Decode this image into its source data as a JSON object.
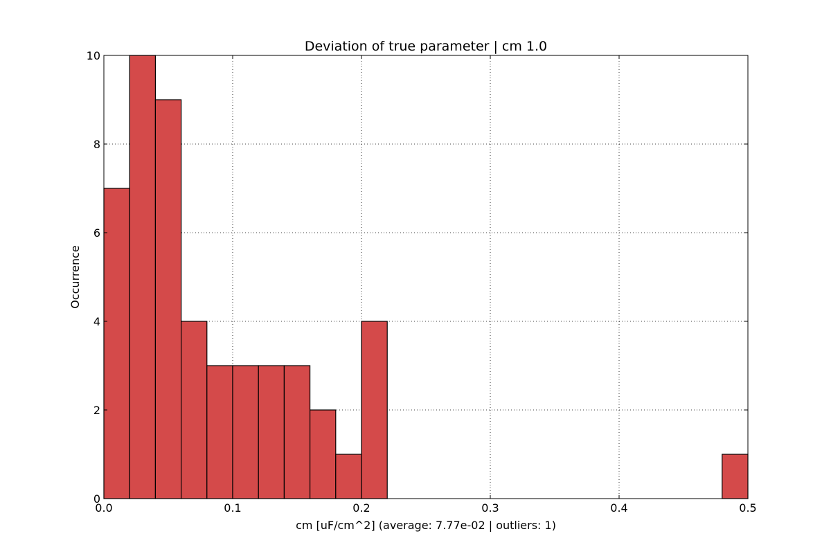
{
  "chart_data": {
    "type": "bar",
    "title": "Deviation of true parameter | cm 1.0",
    "xlabel": "cm [uF/cm^2] (average: 7.77e-02 | outliers: 1)",
    "ylabel": "Occurrence",
    "xlim": [
      0.0,
      0.5
    ],
    "ylim": [
      0,
      10
    ],
    "grid": true,
    "bar_color": "#d44a4a",
    "edge_color": "#000000",
    "bins": [
      {
        "start": 0.0,
        "end": 0.02,
        "value": 7
      },
      {
        "start": 0.02,
        "end": 0.04,
        "value": 10
      },
      {
        "start": 0.04,
        "end": 0.06,
        "value": 9
      },
      {
        "start": 0.06,
        "end": 0.08,
        "value": 4
      },
      {
        "start": 0.08,
        "end": 0.1,
        "value": 3
      },
      {
        "start": 0.1,
        "end": 0.12,
        "value": 3
      },
      {
        "start": 0.12,
        "end": 0.14,
        "value": 3
      },
      {
        "start": 0.14,
        "end": 0.16,
        "value": 3
      },
      {
        "start": 0.16,
        "end": 0.18,
        "value": 2
      },
      {
        "start": 0.18,
        "end": 0.2,
        "value": 1
      },
      {
        "start": 0.2,
        "end": 0.22,
        "value": 4
      },
      {
        "start": 0.48,
        "end": 0.5,
        "value": 1
      }
    ],
    "xticks": [
      {
        "value": 0.0,
        "label": "0.0"
      },
      {
        "value": 0.1,
        "label": "0.1"
      },
      {
        "value": 0.2,
        "label": "0.2"
      },
      {
        "value": 0.3,
        "label": "0.3"
      },
      {
        "value": 0.4,
        "label": "0.4"
      },
      {
        "value": 0.5,
        "label": "0.5"
      }
    ],
    "yticks": [
      {
        "value": 0,
        "label": "0"
      },
      {
        "value": 2,
        "label": "2"
      },
      {
        "value": 4,
        "label": "4"
      },
      {
        "value": 6,
        "label": "6"
      },
      {
        "value": 8,
        "label": "8"
      },
      {
        "value": 10,
        "label": "10"
      }
    ]
  }
}
